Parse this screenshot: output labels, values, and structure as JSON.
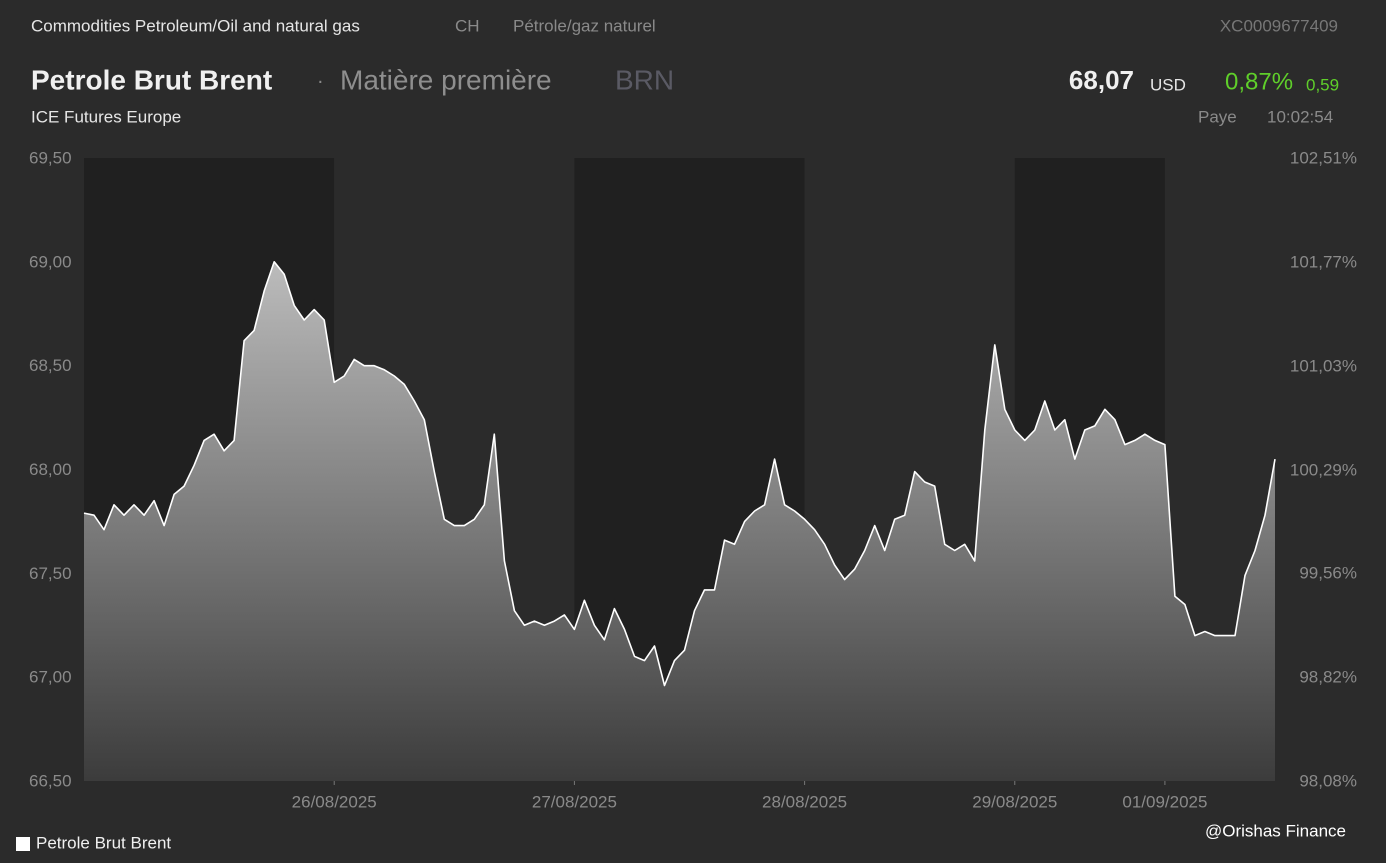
{
  "header": {
    "category": "Commodities Petroleum/Oil and natural gas",
    "country": "CH",
    "sector": "Pétrole/gaz naturel",
    "isin": "XC0009677409",
    "name": "Petrole Brut Brent",
    "separator": "·",
    "kind": "Matière première",
    "symbol": "BRN",
    "exchange": "ICE Futures Europe",
    "price": "68,07",
    "currency": "USD",
    "change_pct": "0,87%",
    "change": "0,59",
    "status": "Paye",
    "time": "10:02:54"
  },
  "watermark": "@Orishas Finance",
  "chart_data": {
    "type": "area",
    "categories": [
      null,
      null,
      null,
      null,
      null,
      null,
      null,
      null,
      null,
      null,
      null,
      null,
      null,
      null,
      null,
      null,
      null,
      null,
      null,
      null,
      null,
      null,
      null,
      null,
      null,
      "26/08/2025",
      null,
      null,
      null,
      null,
      null,
      null,
      null,
      null,
      null,
      null,
      null,
      null,
      null,
      null,
      null,
      null,
      null,
      null,
      null,
      null,
      null,
      null,
      null,
      "27/08/2025",
      null,
      null,
      null,
      null,
      null,
      null,
      null,
      null,
      null,
      null,
      null,
      null,
      null,
      null,
      null,
      null,
      null,
      null,
      null,
      null,
      null,
      null,
      "28/08/2025",
      null,
      null,
      null,
      null,
      null,
      null,
      null,
      null,
      null,
      null,
      null,
      null,
      null,
      null,
      null,
      null,
      null,
      null,
      null,
      null,
      "29/08/2025",
      null,
      null,
      null,
      null,
      null,
      null,
      null,
      null,
      null,
      null,
      null,
      null,
      null,
      null,
      "01/09/2025",
      null,
      null,
      null,
      null,
      null,
      null,
      null,
      null,
      null,
      null,
      null
    ],
    "series": [
      {
        "name": "Petrole Brut Brent",
        "color": "#ffffff",
        "values": [
          67.79,
          67.78,
          67.71,
          67.83,
          67.78,
          67.83,
          67.78,
          67.85,
          67.73,
          67.88,
          67.92,
          68.02,
          68.14,
          68.17,
          68.09,
          68.14,
          68.62,
          68.67,
          68.86,
          69.0,
          68.94,
          68.79,
          68.72,
          68.77,
          68.72,
          68.42,
          68.45,
          68.53,
          68.5,
          68.5,
          68.48,
          68.45,
          68.41,
          68.33,
          68.24,
          67.99,
          67.76,
          67.73,
          67.73,
          67.76,
          67.83,
          68.17,
          67.56,
          67.32,
          67.25,
          67.27,
          67.25,
          67.27,
          67.3,
          67.23,
          67.37,
          67.25,
          67.18,
          67.33,
          67.23,
          67.1,
          67.08,
          67.15,
          66.96,
          67.08,
          67.13,
          67.32,
          67.42,
          67.42,
          67.66,
          67.64,
          67.75,
          67.8,
          67.83,
          68.05,
          67.83,
          67.8,
          67.76,
          67.71,
          67.64,
          67.54,
          67.47,
          67.52,
          67.61,
          67.73,
          67.61,
          67.76,
          67.78,
          67.99,
          67.94,
          67.92,
          67.64,
          67.61,
          67.64,
          67.56,
          68.19,
          68.6,
          68.29,
          68.19,
          68.14,
          68.19,
          68.33,
          68.19,
          68.24,
          68.05,
          68.19,
          68.21,
          68.29,
          68.24,
          68.12,
          68.14,
          68.17,
          68.14,
          68.12,
          67.39,
          67.35,
          67.2,
          67.22,
          67.2,
          67.2,
          67.2,
          67.49,
          67.61,
          67.78,
          68.05
        ]
      }
    ],
    "ylim": [
      66.5,
      69.5
    ],
    "yticks": [
      {
        "value": 66.5,
        "label": "66,50"
      },
      {
        "value": 67,
        "label": "67,00"
      },
      {
        "value": 67.5,
        "label": "67,50"
      },
      {
        "value": 68,
        "label": "68,00"
      },
      {
        "value": 68.5,
        "label": "68,50"
      },
      {
        "value": 69,
        "label": "69,00"
      },
      {
        "value": 69.5,
        "label": "69,50"
      }
    ],
    "y2lim": [
      98.08,
      102.51
    ],
    "y2ticks": [
      {
        "value": 98.08,
        "label": "98,08%"
      },
      {
        "value": 98.82,
        "label": "98,82%"
      },
      {
        "value": 99.56,
        "label": "99,56%"
      },
      {
        "value": 100.29,
        "label": "100,29%"
      },
      {
        "value": 101.03,
        "label": "101,03%"
      },
      {
        "value": 101.77,
        "label": "101,77%"
      },
      {
        "value": 102.51,
        "label": "102,51%"
      }
    ],
    "legend": "bottom-left"
  }
}
